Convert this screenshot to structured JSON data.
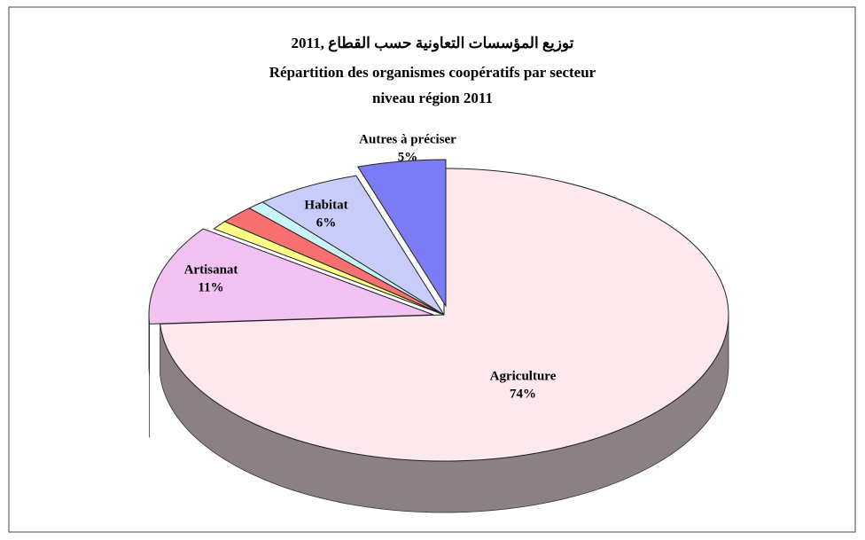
{
  "chart_data": {
    "type": "pie",
    "title": [
      "توزيع المؤسسات التعاونية حسب القطاع ,2011",
      "Répartition des organismes coopératifs par secteur",
      "niveau région 2011"
    ],
    "categories": [
      "Agriculture",
      "Artisanat",
      null,
      null,
      null,
      "Habitat",
      "Autres à préciser"
    ],
    "values": [
      74,
      11,
      1,
      2,
      1,
      6,
      5
    ],
    "value_labels": [
      "74%",
      "11%",
      null,
      null,
      null,
      "6%",
      "5%"
    ],
    "colors": [
      "#fde8ee",
      "#f2c2f2",
      "#ffff88",
      "#f87070",
      "#c8f4f8",
      "#c8ccf8",
      "#7b7bf6"
    ]
  }
}
